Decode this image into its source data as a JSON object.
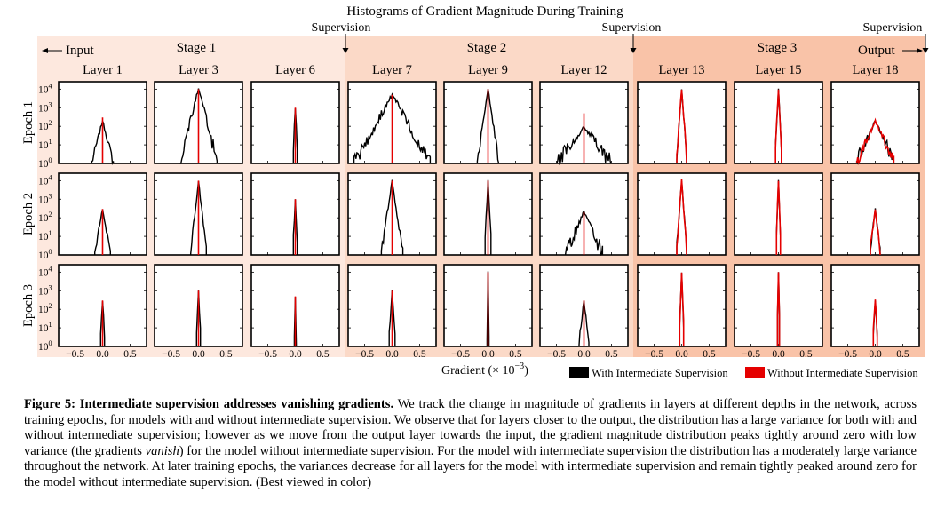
{
  "title": "Histograms of Gradient Magnitude During Training",
  "supervision_label": "Supervision",
  "input_label": "Input",
  "output_label": "Output",
  "stages": [
    "Stage 1",
    "Stage 2",
    "Stage 3"
  ],
  "layers": [
    "Layer 1",
    "Layer 3",
    "Layer 6",
    "Layer 7",
    "Layer 9",
    "Layer 12",
    "Layer 13",
    "Layer 15",
    "Layer 18"
  ],
  "epochs": [
    "Epoch 1",
    "Epoch 2",
    "Epoch 3"
  ],
  "x_ticks": [
    "−0.5",
    "0.0",
    "0.5"
  ],
  "y_ticks": [
    "10",
    "10",
    "10",
    "10",
    "10"
  ],
  "y_tick_exponents": [
    "0",
    "1",
    "2",
    "3",
    "4"
  ],
  "xlabel_main": "Gradient (× 10",
  "xlabel_exp": "−3",
  "xlabel_end": ")",
  "legend": {
    "with": "With Intermediate Supervision",
    "without": "Without Intermediate Supervision"
  },
  "colors": {
    "with": "#000000",
    "without": "#e50000",
    "stage1_bg": "#fde8de",
    "stage2_bg": "#fbd9c7",
    "stage3_bg": "#f9c3a8"
  },
  "chart_data": {
    "type": "line",
    "title": "Histograms of Gradient Magnitude During Training",
    "xlabel": "Gradient (× 10^-3)",
    "ylabel": "",
    "y_scale": "log",
    "xlim": [
      -0.8,
      0.8
    ],
    "ylim": [
      1,
      10000
    ],
    "note_series": [
      "With Intermediate Supervision",
      "Without Intermediate Supervision"
    ],
    "panels": [
      [
        {
          "with": [
            0.2,
            200
          ],
          "without": [
            0.005,
            300
          ]
        },
        {
          "with": [
            0.35,
            10000
          ],
          "without": [
            0.005,
            10000
          ]
        },
        {
          "with": [
            0.05,
            1000
          ],
          "without": [
            0.005,
            1000
          ]
        },
        {
          "with": [
            0.7,
            5000
          ],
          "without": [
            0.005,
            5000
          ]
        },
        {
          "with": [
            0.2,
            10000
          ],
          "without": [
            0.005,
            10000
          ]
        },
        {
          "with": [
            0.5,
            100
          ],
          "without": [
            0.005,
            500
          ]
        },
        {
          "with": [
            0.1,
            10000
          ],
          "without": [
            0.1,
            10000
          ]
        },
        {
          "with": [
            0.07,
            10000
          ],
          "without": [
            0.07,
            10000
          ]
        },
        {
          "with": [
            0.35,
            200
          ],
          "without": [
            0.35,
            200
          ]
        }
      ],
      [
        {
          "with": [
            0.15,
            300
          ],
          "without": [
            0.005,
            300
          ]
        },
        {
          "with": [
            0.15,
            10000
          ],
          "without": [
            0.005,
            10000
          ]
        },
        {
          "with": [
            0.05,
            1000
          ],
          "without": [
            0.005,
            1000
          ]
        },
        {
          "with": [
            0.2,
            10000
          ],
          "without": [
            0.005,
            10000
          ]
        },
        {
          "with": [
            0.07,
            10000
          ],
          "without": [
            0.005,
            10000
          ]
        },
        {
          "with": [
            0.35,
            200
          ],
          "without": [
            0.005,
            200
          ]
        },
        {
          "with": [
            0.1,
            10000
          ],
          "without": [
            0.1,
            10000
          ]
        },
        {
          "with": [
            0.05,
            10000
          ],
          "without": [
            0.05,
            10000
          ]
        },
        {
          "with": [
            0.1,
            300
          ],
          "without": [
            0.1,
            300
          ]
        }
      ],
      [
        {
          "with": [
            0.05,
            300
          ],
          "without": [
            0.005,
            300
          ]
        },
        {
          "with": [
            0.05,
            1000
          ],
          "without": [
            0.005,
            1000
          ]
        },
        {
          "with": [
            0.02,
            500
          ],
          "without": [
            0.005,
            500
          ]
        },
        {
          "with": [
            0.07,
            1000
          ],
          "without": [
            0.005,
            1000
          ]
        },
        {
          "with": [
            0.02,
            10000
          ],
          "without": [
            0.005,
            10000
          ]
        },
        {
          "with": [
            0.1,
            300
          ],
          "without": [
            0.005,
            300
          ]
        },
        {
          "with": [
            0.05,
            10000
          ],
          "without": [
            0.05,
            10000
          ]
        },
        {
          "with": [
            0.03,
            10000
          ],
          "without": [
            0.03,
            10000
          ]
        },
        {
          "with": [
            0.05,
            300
          ],
          "without": [
            0.05,
            300
          ]
        }
      ]
    ]
  },
  "caption": {
    "label": "Figure 5: Intermediate supervision addresses vanishing gradients.",
    "p1": " We track the change in magnitude of gradients in layers at different depths in the network, across training epochs, for models with and without intermediate supervision. We observe that for layers closer to the output, the distribution has a large variance for both with and without intermediate supervision; however as we move from the output layer towards the input, the gradient magnitude distribution peaks tightly around zero with low variance (the gradients ",
    "em": "vanish",
    "p2": ") for the model without intermediate supervision. For the model with intermediate supervision the distribution has a moderately large variance throughout the network. At later training epochs, the variances decrease for all layers for the model with intermediate supervision and remain tightly peaked around zero for the model without intermediate supervision. (Best viewed in color)"
  }
}
